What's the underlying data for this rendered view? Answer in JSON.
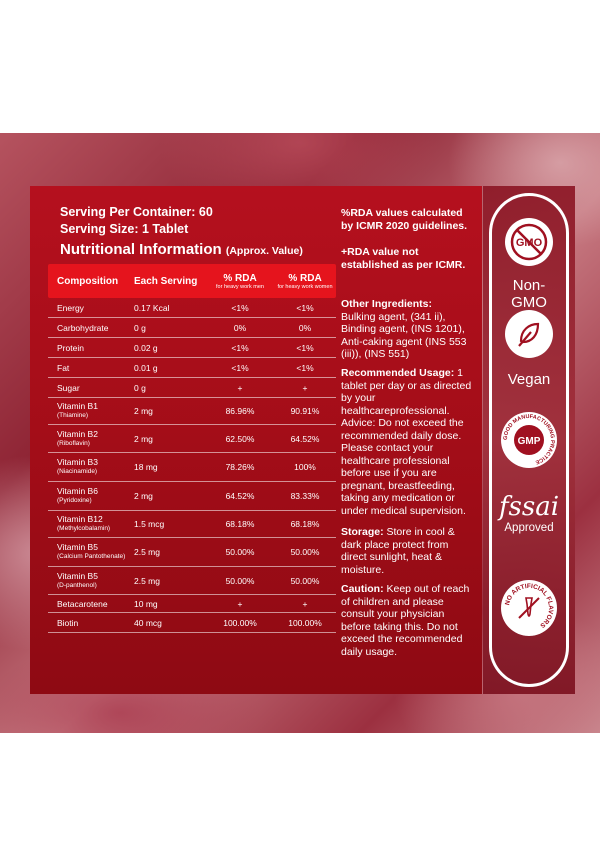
{
  "header": {
    "serving_per_container": "Serving Per Container: 60",
    "serving_size": "Serving Size: 1 Tablet",
    "title": "Nutritional Information",
    "title_note": "(Approx. Value)"
  },
  "table": {
    "headers": {
      "composition": "Composition",
      "each_serving": "Each Serving",
      "rda_men": "% RDA",
      "rda_men_note": "for heavy work men",
      "rda_women": "% RDA",
      "rda_women_note": "for heavy work women"
    },
    "rows": [
      {
        "name": "Energy",
        "sub": "",
        "serving": "0.17 Kcal",
        "men": "<1%",
        "women": "<1%"
      },
      {
        "name": "Carbohydrate",
        "sub": "",
        "serving": "0 g",
        "men": "0%",
        "women": "0%"
      },
      {
        "name": "Protein",
        "sub": "",
        "serving": "0.02 g",
        "men": "<1%",
        "women": "<1%"
      },
      {
        "name": "Fat",
        "sub": "",
        "serving": "0.01 g",
        "men": "<1%",
        "women": "<1%"
      },
      {
        "name": "Sugar",
        "sub": "",
        "serving": "0 g",
        "men": "+",
        "women": "+"
      },
      {
        "name": "Vitamin B1",
        "sub": "(Thiamine)",
        "serving": "2 mg",
        "men": "86.96%",
        "women": "90.91%"
      },
      {
        "name": "Vitamin B2",
        "sub": "(Riboflavin)",
        "serving": "2 mg",
        "men": "62.50%",
        "women": "64.52%"
      },
      {
        "name": "Vitamin B3",
        "sub": "(Niacinamide)",
        "serving": "18 mg",
        "men": "78.26%",
        "women": "100%"
      },
      {
        "name": "Vitamin B6",
        "sub": "(Pyridoxine)",
        "serving": "2 mg",
        "men": "64.52%",
        "women": "83.33%"
      },
      {
        "name": "Vitamin B12",
        "sub": "(Methylcobalamin)",
        "serving": "1.5 mcg",
        "men": "68.18%",
        "women": "68.18%"
      },
      {
        "name": "Vitamin B5",
        "sub": "(Calcium Pantothenate)",
        "serving": "2.5 mg",
        "men": "50.00%",
        "women": "50.00%"
      },
      {
        "name": "Vitamin B5",
        "sub": "(D-panthenol)",
        "serving": "2.5 mg",
        "men": "50.00%",
        "women": "50.00%"
      },
      {
        "name": "Betacarotene",
        "sub": "",
        "serving": "10 mg",
        "men": "+",
        "women": "+"
      },
      {
        "name": "Biotin",
        "sub": "",
        "serving": "40 mcg",
        "men": "100.00%",
        "women": "100.00%"
      }
    ]
  },
  "notes": {
    "rda_note": "%RDA values calculated by ICMR 2020 guidelines.",
    "plus_note": "+RDA value not established as per ICMR.",
    "other_label": "Other Ingredients:",
    "other_text": "Bulking agent, (341 ii), Binding agent, (INS 1201), Anti-caking agent (INS 553 (iii)), (INS 551)",
    "usage_label": "Recommended Usage:",
    "usage_text": "1 tablet per day or as directed by your healthcareprofessional. Advice: Do not exceed the recommended daily dose. Please contact your healthcare professional before use if you are pregnant, breastfeeding, taking any medication or under medical supervision.",
    "storage_label": "Storage:",
    "storage_text": "Store in cool & dark place protect from direct sunlight, heat & moisture.",
    "caution_label": "Caution:",
    "caution_text": "Keep out of reach of children and please consult your physician before taking this. Do not exceed the recommended daily usage."
  },
  "badges": {
    "gmo_icon_text": "GMO",
    "gmo_label": "Non-GMO",
    "vegan_label": "Vegan",
    "gmp_ring_text": "GOOD MANUFACTURING PRACTICE",
    "gmp_icon_text": "GMP",
    "fssai_text": "fssai",
    "fssai_label": "Approved",
    "no_artificial_ring_text": "NO ARTIFICIAL FLAVORS"
  },
  "colors": {
    "panel": "#a30d18",
    "header_row": "#e5141d",
    "badge_fg": "#a01020"
  }
}
